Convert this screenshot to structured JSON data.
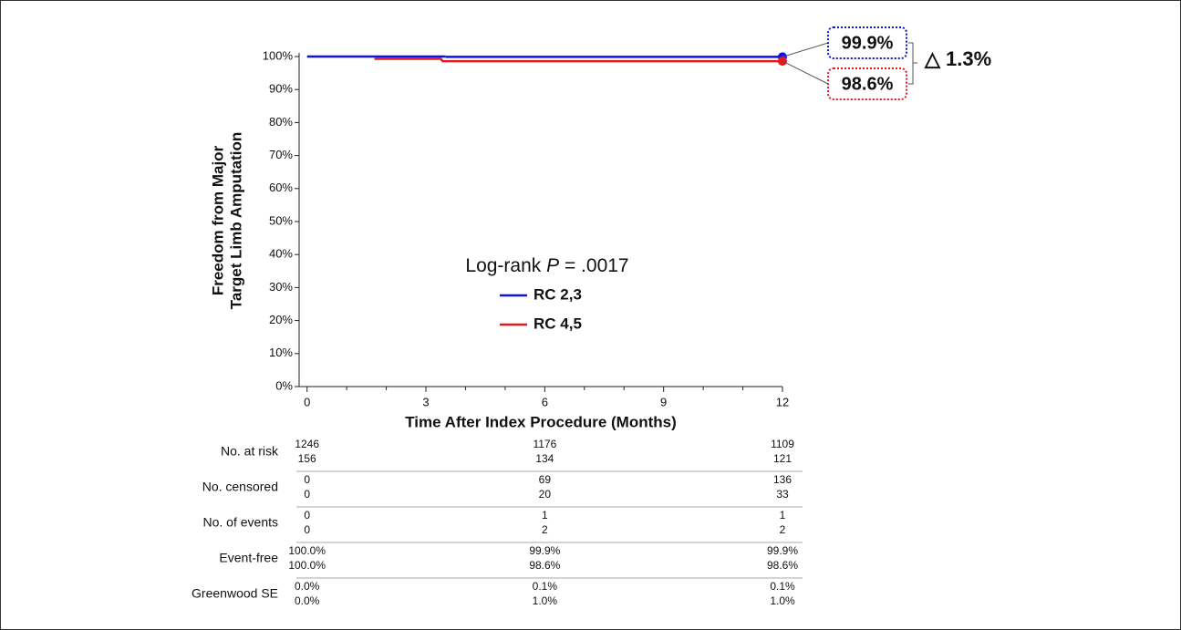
{
  "chart_data": {
    "type": "step",
    "ylabel": [
      "Freedom from Major",
      "Target Limb Amputation"
    ],
    "xlabel": "Time After Index Procedure (Months)",
    "xlim": [
      -0.2,
      12
    ],
    "xticks": [
      0,
      3,
      6,
      9,
      12
    ],
    "xminorticks": [
      1,
      2,
      4,
      5,
      7,
      8,
      10,
      11
    ],
    "ylim": [
      0,
      100
    ],
    "yticks": [
      {
        "value": 0,
        "label": "0%"
      },
      {
        "value": 10,
        "label": "10%"
      },
      {
        "value": 20,
        "label": "20%"
      },
      {
        "value": 30,
        "label": "30%"
      },
      {
        "value": 40,
        "label": "40%"
      },
      {
        "value": 50,
        "label": "50%"
      },
      {
        "value": 60,
        "label": "60%"
      },
      {
        "value": 70,
        "label": "70%"
      },
      {
        "value": 80,
        "label": "80%"
      },
      {
        "value": 90,
        "label": "90%"
      },
      {
        "value": 100,
        "label": "100%"
      }
    ],
    "series": [
      {
        "name": "RC 2,3",
        "color": "#1010e8",
        "x": [
          0,
          3.5,
          12
        ],
        "values": [
          100,
          99.9,
          99.9
        ],
        "value_labels": [
          null,
          null,
          "99.9%"
        ]
      },
      {
        "name": "RC 4,5",
        "color": "#e41a1c",
        "x": [
          1.7,
          3.4,
          12
        ],
        "values": [
          99.3,
          98.6,
          98.6
        ],
        "value_labels": [
          null,
          null,
          "98.6%"
        ]
      }
    ],
    "annotation": [
      "Log-rank ",
      "P",
      " = .0017"
    ],
    "delta_label": "△ 1.3%",
    "delta_color": "#1f9a4a",
    "risk_table": {
      "times": [
        0,
        6,
        12
      ],
      "rows": [
        {
          "label": "No. at risk",
          "values": [
            [
              1246,
              1176,
              1109
            ],
            [
              156,
              134,
              121
            ]
          ]
        },
        {
          "label": "No. censored",
          "values": [
            [
              0,
              69,
              136
            ],
            [
              0,
              20,
              33
            ]
          ]
        },
        {
          "label": "No. of events",
          "values": [
            [
              0,
              1,
              1
            ],
            [
              0,
              2,
              2
            ]
          ]
        },
        {
          "label": "Event-free",
          "values": [
            [
              "100.0%",
              "99.9%",
              "99.9%"
            ],
            [
              "100.0%",
              "98.6%",
              "98.6%"
            ]
          ]
        },
        {
          "label": "Greenwood SE",
          "values": [
            [
              "0.0%",
              "0.1%",
              "0.1%"
            ],
            [
              "0.0%",
              "1.0%",
              "1.0%"
            ]
          ]
        }
      ]
    }
  }
}
